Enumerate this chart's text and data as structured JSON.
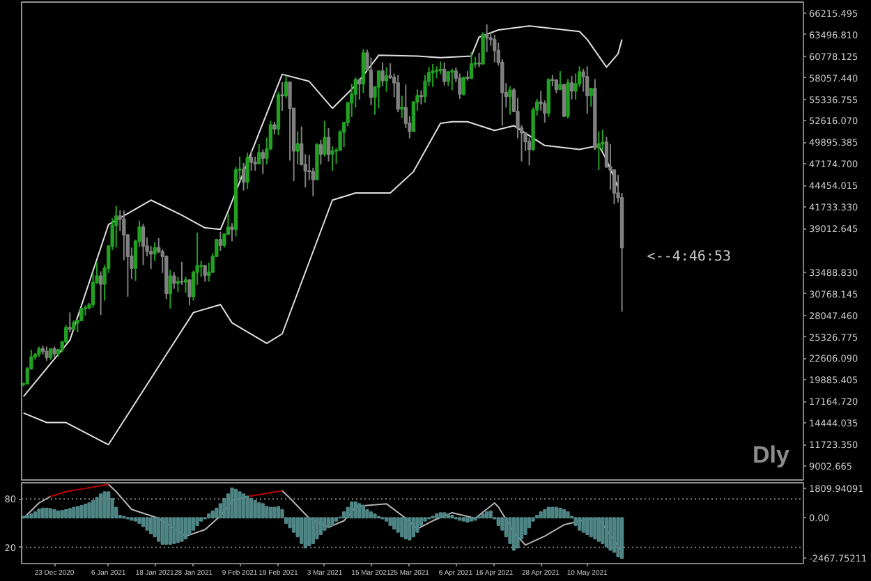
{
  "chart_data": [
    {
      "type": "candlestick",
      "x": [
        "2020-12-15",
        "2020-12-16",
        "2020-12-17",
        "2020-12-18",
        "2020-12-19",
        "2020-12-20",
        "2020-12-21",
        "2020-12-22",
        "2020-12-23",
        "2020-12-24",
        "2020-12-25",
        "2020-12-26",
        "2020-12-27",
        "2020-12-28",
        "2020-12-29",
        "2020-12-30",
        "2020-12-31",
        "2021-01-01",
        "2021-01-02",
        "2021-01-03",
        "2021-01-04",
        "2021-01-05",
        "2021-01-06",
        "2021-01-07",
        "2021-01-08",
        "2021-01-09",
        "2021-01-10",
        "2021-01-11",
        "2021-01-12",
        "2021-01-13",
        "2021-01-14",
        "2021-01-15",
        "2021-01-16",
        "2021-01-17",
        "2021-01-18",
        "2021-01-19",
        "2021-01-20",
        "2021-01-21",
        "2021-01-22",
        "2021-01-23",
        "2021-01-24",
        "2021-01-25",
        "2021-01-26",
        "2021-01-27",
        "2021-01-28",
        "2021-01-29",
        "2021-01-30",
        "2021-01-31",
        "2021-02-01",
        "2021-02-02",
        "2021-02-03",
        "2021-02-04",
        "2021-02-05",
        "2021-02-06",
        "2021-02-07",
        "2021-02-08",
        "2021-02-09",
        "2021-02-10",
        "2021-02-11",
        "2021-02-12",
        "2021-02-13",
        "2021-02-14",
        "2021-02-15",
        "2021-02-16",
        "2021-02-17",
        "2021-02-18",
        "2021-02-19",
        "2021-02-20",
        "2021-02-21",
        "2021-02-22",
        "2021-02-23",
        "2021-02-24",
        "2021-02-25",
        "2021-02-26",
        "2021-02-27",
        "2021-02-28",
        "2021-03-01",
        "2021-03-02",
        "2021-03-03",
        "2021-03-04",
        "2021-03-05",
        "2021-03-06",
        "2021-03-07",
        "2021-03-08",
        "2021-03-09",
        "2021-03-10",
        "2021-03-11",
        "2021-03-12",
        "2021-03-13",
        "2021-03-14",
        "2021-03-15",
        "2021-03-16",
        "2021-03-17",
        "2021-03-18",
        "2021-03-19",
        "2021-03-20",
        "2021-03-21",
        "2021-03-22",
        "2021-03-23",
        "2021-03-24",
        "2021-03-25",
        "2021-03-26",
        "2021-03-27",
        "2021-03-28",
        "2021-03-29",
        "2021-03-30",
        "2021-03-31",
        "2021-04-01",
        "2021-04-02",
        "2021-04-03",
        "2021-04-04",
        "2021-04-05",
        "2021-04-06",
        "2021-04-07",
        "2021-04-08",
        "2021-04-09",
        "2021-04-10",
        "2021-04-11",
        "2021-04-12",
        "2021-04-13",
        "2021-04-14",
        "2021-04-15",
        "2021-04-16",
        "2021-04-17",
        "2021-04-18",
        "2021-04-19",
        "2021-04-20",
        "2021-04-21",
        "2021-04-22",
        "2021-04-23",
        "2021-04-24",
        "2021-04-25",
        "2021-04-26",
        "2021-04-27",
        "2021-04-28",
        "2021-04-29",
        "2021-04-30",
        "2021-05-01",
        "2021-05-02",
        "2021-05-03",
        "2021-05-04",
        "2021-05-05",
        "2021-05-06",
        "2021-05-07",
        "2021-05-08",
        "2021-05-09",
        "2021-05-10",
        "2021-05-11",
        "2021-05-12",
        "2021-05-13",
        "2021-05-14",
        "2021-05-15",
        "2021-05-16",
        "2021-05-17",
        "2021-05-18",
        "2021-05-19"
      ],
      "ohlc": [
        [
          19300,
          19500,
          19050,
          19400
        ],
        [
          19400,
          21500,
          19300,
          21300
        ],
        [
          21300,
          23700,
          21200,
          22800
        ],
        [
          22800,
          23300,
          22400,
          23100
        ],
        [
          23100,
          24100,
          22800,
          23800
        ],
        [
          23800,
          24200,
          23100,
          23500
        ],
        [
          23500,
          24100,
          22300,
          22700
        ],
        [
          22700,
          23800,
          22400,
          23800
        ],
        [
          23800,
          24100,
          22700,
          23200
        ],
        [
          23200,
          23800,
          22800,
          23700
        ],
        [
          23700,
          24800,
          23400,
          24700
        ],
        [
          24700,
          26800,
          24500,
          26500
        ],
        [
          26500,
          28400,
          25900,
          26300
        ],
        [
          26300,
          27400,
          26200,
          27100
        ],
        [
          27100,
          27400,
          25900,
          27400
        ],
        [
          27400,
          29000,
          27300,
          28900
        ],
        [
          28900,
          29300,
          28000,
          29000
        ],
        [
          29000,
          29600,
          28800,
          29400
        ],
        [
          29400,
          33300,
          29000,
          32200
        ],
        [
          32200,
          34800,
          32000,
          33000
        ],
        [
          33000,
          33600,
          28100,
          32000
        ],
        [
          32000,
          34400,
          29900,
          34000
        ],
        [
          34000,
          36900,
          33400,
          36800
        ],
        [
          36800,
          40300,
          36300,
          39400
        ],
        [
          39400,
          41900,
          36600,
          40600
        ],
        [
          40600,
          41300,
          38700,
          40200
        ],
        [
          40200,
          41300,
          35000,
          38200
        ],
        [
          38200,
          38300,
          30400,
          35500
        ],
        [
          35500,
          36600,
          32600,
          34000
        ],
        [
          34000,
          37600,
          32400,
          37400
        ],
        [
          37400,
          40000,
          36700,
          39200
        ],
        [
          39200,
          39600,
          34400,
          36800
        ],
        [
          36800,
          37900,
          35500,
          36100
        ],
        [
          36100,
          36800,
          33900,
          35800
        ],
        [
          35800,
          37300,
          34900,
          36600
        ],
        [
          36600,
          37800,
          35900,
          36100
        ],
        [
          36100,
          36400,
          33400,
          35500
        ],
        [
          35500,
          35600,
          30100,
          30800
        ],
        [
          30800,
          33800,
          28900,
          33000
        ],
        [
          33000,
          33500,
          31400,
          32100
        ],
        [
          32100,
          32900,
          31000,
          32300
        ],
        [
          32300,
          34800,
          31900,
          32250
        ],
        [
          32250,
          32900,
          30900,
          32500
        ],
        [
          32500,
          32600,
          29300,
          30400
        ],
        [
          30400,
          33700,
          29900,
          33500
        ],
        [
          33500,
          38500,
          31900,
          34300
        ],
        [
          34250,
          34900,
          32900,
          34300
        ],
        [
          34300,
          34400,
          32300,
          33100
        ],
        [
          33100,
          34700,
          32300,
          33500
        ],
        [
          33500,
          35900,
          33400,
          35500
        ],
        [
          35500,
          37700,
          35400,
          37600
        ],
        [
          37600,
          38600,
          36200,
          36900
        ],
        [
          36900,
          38300,
          36600,
          38300
        ],
        [
          38300,
          40900,
          38200,
          39200
        ],
        [
          39200,
          39700,
          37400,
          38900
        ],
        [
          38900,
          46800,
          38000,
          46400
        ],
        [
          46400,
          48100,
          45000,
          46500
        ],
        [
          46500,
          47300,
          43800,
          44900
        ],
        [
          44900,
          48600,
          44000,
          48000
        ],
        [
          48000,
          48900,
          46300,
          47400
        ],
        [
          47400,
          48100,
          46300,
          47200
        ],
        [
          47200,
          49700,
          47100,
          48600
        ],
        [
          48600,
          49000,
          45900,
          47900
        ],
        [
          47900,
          50500,
          47100,
          49100
        ],
        [
          49100,
          52600,
          48900,
          52100
        ],
        [
          52100,
          52500,
          50900,
          51600
        ],
        [
          51600,
          56300,
          50800,
          55900
        ],
        [
          55900,
          57500,
          53900,
          55800
        ],
        [
          55800,
          58300,
          55500,
          57500
        ],
        [
          57500,
          57500,
          47600,
          54200
        ],
        [
          54200,
          54200,
          45000,
          48800
        ],
        [
          48800,
          51300,
          47100,
          49700
        ],
        [
          49700,
          51900,
          47000,
          47100
        ],
        [
          47100,
          48400,
          44200,
          46300
        ],
        [
          46300,
          48300,
          45100,
          46200
        ],
        [
          46200,
          46700,
          43100,
          45200
        ],
        [
          45200,
          49800,
          45100,
          49600
        ],
        [
          49600,
          50200,
          47100,
          48400
        ],
        [
          48400,
          52600,
          48100,
          50500
        ],
        [
          50500,
          51700,
          47500,
          48400
        ],
        [
          48400,
          49400,
          46300,
          48800
        ],
        [
          48800,
          49200,
          47200,
          48900
        ],
        [
          48900,
          51400,
          48900,
          51200
        ],
        [
          51200,
          52400,
          49300,
          52400
        ],
        [
          52400,
          54900,
          51900,
          54900
        ],
        [
          54900,
          57300,
          53100,
          56000
        ],
        [
          56000,
          58100,
          54300,
          57800
        ],
        [
          57800,
          58000,
          55300,
          57300
        ],
        [
          57300,
          61700,
          56100,
          61200
        ],
        [
          61200,
          61600,
          58900,
          59000
        ],
        [
          59000,
          60600,
          54600,
          55600
        ],
        [
          55600,
          56900,
          53400,
          56900
        ],
        [
          56900,
          58900,
          54200,
          58900
        ],
        [
          58900,
          60000,
          57000,
          57700
        ],
        [
          57700,
          59400,
          56300,
          58300
        ],
        [
          58300,
          59900,
          57900,
          58100
        ],
        [
          58100,
          58600,
          55600,
          57400
        ],
        [
          57400,
          58400,
          53700,
          54100
        ],
        [
          54100,
          55800,
          53000,
          54300
        ],
        [
          54300,
          57200,
          51700,
          52300
        ],
        [
          52300,
          53200,
          50400,
          51300
        ],
        [
          51300,
          55100,
          51300,
          55000
        ],
        [
          55000,
          56600,
          53900,
          55800
        ],
        [
          55800,
          56500,
          54700,
          55700
        ],
        [
          55700,
          58400,
          54900,
          57600
        ],
        [
          57600,
          59400,
          57000,
          58700
        ],
        [
          58700,
          59800,
          56900,
          58900
        ],
        [
          58900,
          59500,
          58000,
          59000
        ],
        [
          59000,
          60100,
          58500,
          59100
        ],
        [
          59100,
          60000,
          57100,
          57600
        ],
        [
          57600,
          58900,
          57000,
          58800
        ],
        [
          58800,
          59200,
          56500,
          58900
        ],
        [
          58900,
          59400,
          57500,
          58000
        ],
        [
          58000,
          58600,
          55400,
          56000
        ],
        [
          56000,
          58200,
          55800,
          58100
        ],
        [
          58100,
          58900,
          57700,
          58000
        ],
        [
          58000,
          61300,
          57900,
          59800
        ],
        [
          59800,
          60700,
          59300,
          59900
        ],
        [
          59900,
          61200,
          59400,
          59800
        ],
        [
          59800,
          63800,
          59800,
          63500
        ],
        [
          63500,
          64800,
          61300,
          63100
        ],
        [
          63100,
          63800,
          62100,
          62900
        ],
        [
          62900,
          63500,
          60000,
          61500
        ],
        [
          61500,
          62500,
          59600,
          60000
        ],
        [
          60000,
          60400,
          52000,
          56200
        ],
        [
          56200,
          57400,
          54300,
          55700
        ],
        [
          55700,
          57000,
          53400,
          56500
        ],
        [
          56500,
          56800,
          53700,
          53800
        ],
        [
          53800,
          55500,
          50400,
          51700
        ],
        [
          51700,
          52100,
          47500,
          51100
        ],
        [
          51100,
          51200,
          48800,
          50000
        ],
        [
          50000,
          50500,
          47000,
          49000
        ],
        [
          49000,
          54300,
          48800,
          54000
        ],
        [
          54000,
          55400,
          53300,
          55000
        ],
        [
          55000,
          56400,
          53900,
          54800
        ],
        [
          54800,
          55200,
          52400,
          53600
        ],
        [
          53600,
          58000,
          53100,
          57800
        ],
        [
          57800,
          58400,
          57000,
          57750
        ],
        [
          57750,
          57900,
          56100,
          56600
        ],
        [
          56600,
          58900,
          56500,
          57200
        ],
        [
          57200,
          57200,
          53100,
          53200
        ],
        [
          53200,
          57900,
          52900,
          57400
        ],
        [
          57400,
          58300,
          55300,
          56400
        ],
        [
          56400,
          58600,
          55300,
          57300
        ],
        [
          57300,
          59500,
          56900,
          58800
        ],
        [
          58800,
          59200,
          56300,
          58200
        ],
        [
          58200,
          59500,
          53500,
          55800
        ],
        [
          55800,
          56800,
          54400,
          56700
        ],
        [
          56700,
          57900,
          48900,
          49200
        ],
        [
          49200,
          51300,
          46400,
          49700
        ],
        [
          49700,
          51500,
          48800,
          49900
        ],
        [
          49900,
          50600,
          46700,
          46800
        ],
        [
          46800,
          49700,
          43900,
          46400
        ],
        [
          46400,
          46500,
          42100,
          43500
        ],
        [
          43500,
          45800,
          42300,
          42900
        ],
        [
          42900,
          43500,
          28500,
          36600
        ]
      ],
      "colors": [
        "#22a022",
        "#22a022",
        "#22a022",
        "#22a022",
        "#22a022",
        "#808080",
        "#808080",
        "#22a022",
        "#808080",
        "#22a022",
        "#22a022",
        "#22a022",
        "#808080",
        "#22a022",
        "#22a022",
        "#22a022",
        "#22a022",
        "#22a022",
        "#22a022",
        "#22a022",
        "#808080",
        "#22a022",
        "#22a022",
        "#22a022",
        "#22a022",
        "#808080",
        "#808080",
        "#808080",
        "#808080",
        "#22a022",
        "#22a022",
        "#808080",
        "#808080",
        "#808080",
        "#22a022",
        "#808080",
        "#808080",
        "#808080",
        "#22a022",
        "#808080",
        "#22a022",
        "#808080",
        "#22a022",
        "#808080",
        "#22a022",
        "#22a022",
        "#22a022",
        "#808080",
        "#22a022",
        "#22a022",
        "#22a022",
        "#808080",
        "#22a022",
        "#22a022",
        "#808080",
        "#22a022",
        "#22a022",
        "#808080",
        "#22a022",
        "#808080",
        "#808080",
        "#22a022",
        "#808080",
        "#22a022",
        "#22a022",
        "#808080",
        "#22a022",
        "#808080",
        "#22a022",
        "#808080",
        "#808080",
        "#22a022",
        "#808080",
        "#808080",
        "#808080",
        "#808080",
        "#22a022",
        "#808080",
        "#22a022",
        "#808080",
        "#22a022",
        "#22a022",
        "#22a022",
        "#22a022",
        "#22a022",
        "#22a022",
        "#22a022",
        "#808080",
        "#22a022",
        "#808080",
        "#808080",
        "#22a022",
        "#22a022",
        "#808080",
        "#22a022",
        "#808080",
        "#808080",
        "#808080",
        "#22a022",
        "#808080",
        "#808080",
        "#22a022",
        "#22a022",
        "#808080",
        "#22a022",
        "#22a022",
        "#22a022",
        "#22a022",
        "#22a022",
        "#808080",
        "#22a022",
        "#22a022",
        "#808080",
        "#808080",
        "#22a022",
        "#808080",
        "#22a022",
        "#22a022",
        "#808080",
        "#22a022",
        "#808080",
        "#808080",
        "#808080",
        "#808080",
        "#808080",
        "#808080",
        "#22a022",
        "#808080",
        "#808080",
        "#808080",
        "#808080",
        "#808080",
        "#22a022",
        "#22a022",
        "#808080",
        "#808080",
        "#22a022",
        "#808080",
        "#808080",
        "#22a022",
        "#808080",
        "#22a022",
        "#808080",
        "#22a022",
        "#22a022",
        "#808080",
        "#808080",
        "#22a022",
        "#808080",
        "#22a022",
        "#22a022",
        "#808080",
        "#808080",
        "#808080",
        "#808080",
        "#808080"
      ],
      "series": [
        {
          "type": "line",
          "color": "#e0e0e0",
          "x": [
            "2020-12-15",
            "2020-12-27",
            "2021-01-06",
            "2021-01-17",
            "2021-01-25",
            "2021-01-31",
            "2021-02-04",
            "2021-02-06",
            "2021-02-20",
            "2021-02-27",
            "2021-03-05",
            "2021-03-11",
            "2021-03-17",
            "2021-03-27",
            "2021-04-02",
            "2021-04-10",
            "2021-04-12",
            "2021-04-17",
            "2021-04-25",
            "2021-05-08",
            "2021-05-10",
            "2021-05-15",
            "2021-05-18",
            "2021-05-19"
          ],
          "values": [
            17800,
            24900,
            39500,
            42600,
            40700,
            39100,
            38900,
            41200,
            58500,
            57600,
            54200,
            57100,
            60900,
            60800,
            60600,
            60800,
            63200,
            64100,
            64600,
            63900,
            62900,
            59400,
            61100,
            62900
          ]
        },
        {
          "type": "line",
          "color": "#e0e0e0",
          "x": [
            "2020-12-15",
            "2020-12-21",
            "2020-12-26",
            "2021-01-06",
            "2021-01-21",
            "2021-01-28",
            "2021-02-04",
            "2021-02-07",
            "2021-02-16",
            "2021-02-20",
            "2021-03-05",
            "2021-03-11",
            "2021-03-20",
            "2021-03-26",
            "2021-04-02",
            "2021-04-05",
            "2021-04-09",
            "2021-04-16",
            "2021-04-21",
            "2021-04-29",
            "2021-05-08",
            "2021-05-13",
            "2021-05-15",
            "2021-05-18"
          ],
          "values": [
            15700,
            14500,
            14500,
            11700,
            23100,
            28400,
            29400,
            27100,
            24500,
            25700,
            42600,
            43500,
            43500,
            46200,
            52300,
            52500,
            52500,
            51400,
            52000,
            49500,
            49000,
            49500,
            47700,
            44200
          ]
        }
      ],
      "xlim": [
        "2020-12-14T12:00",
        "2021-07-05"
      ],
      "ylim": [
        7240,
        67620
      ],
      "yticks": [
        66215.495,
        {
          "value": 63496.81,
          "label": "63496.810"
        },
        60778.125,
        {
          "value": 58057.44,
          "label": "58057.440"
        },
        55336.755,
        {
          "value": 52616.07,
          "label": "52616.070"
        },
        49895.385,
        {
          "value": 47174.7,
          "label": "47174.700"
        },
        44454.015,
        {
          "value": 41733.33,
          "label": "41733.330"
        },
        39012.645,
        {
          "value": 33488.83,
          "label": "33488.830"
        },
        30768.145,
        {
          "value": 28047.46,
          "label": "28047.460"
        },
        25326.775,
        {
          "value": 22606.09,
          "label": "22606.090"
        },
        19885.405,
        {
          "value": 17164.72,
          "label": "17164.720"
        },
        14444.035,
        {
          "value": 11723.35,
          "label": "11723.350"
        },
        9002.665
      ],
      "tick_labels": "y",
      "annotations": [
        "<--4:46:53",
        "Dly"
      ]
    },
    {
      "type": "bar",
      "x": [
        "2020-12-15",
        "2020-12-16",
        "2020-12-17",
        "2020-12-18",
        "2020-12-19",
        "2020-12-20",
        "2020-12-21",
        "2020-12-22",
        "2020-12-23",
        "2020-12-24",
        "2020-12-25",
        "2020-12-26",
        "2020-12-27",
        "2020-12-28",
        "2020-12-29",
        "2020-12-30",
        "2020-12-31",
        "2021-01-01",
        "2021-01-02",
        "2021-01-03",
        "2021-01-04",
        "2021-01-05",
        "2021-01-06",
        "2021-01-07",
        "2021-01-08",
        "2021-01-09",
        "2021-01-10",
        "2021-01-11",
        "2021-01-12",
        "2021-01-13",
        "2021-01-14",
        "2021-01-15",
        "2021-01-16",
        "2021-01-17",
        "2021-01-18",
        "2021-01-19",
        "2021-01-20",
        "2021-01-21",
        "2021-01-22",
        "2021-01-23",
        "2021-01-24",
        "2021-01-25",
        "2021-01-26",
        "2021-01-27",
        "2021-01-28",
        "2021-01-29",
        "2021-01-30",
        "2021-01-31",
        "2021-02-01",
        "2021-02-02",
        "2021-02-03",
        "2021-02-04",
        "2021-02-05",
        "2021-02-06",
        "2021-02-07",
        "2021-02-08",
        "2021-02-09",
        "2021-02-10",
        "2021-02-11",
        "2021-02-12",
        "2021-02-13",
        "2021-02-14",
        "2021-02-15",
        "2021-02-16",
        "2021-02-17",
        "2021-02-18",
        "2021-02-19",
        "2021-02-20",
        "2021-02-21",
        "2021-02-22",
        "2021-02-23",
        "2021-02-24",
        "2021-02-25",
        "2021-02-26",
        "2021-02-27",
        "2021-02-28",
        "2021-03-01",
        "2021-03-02",
        "2021-03-03",
        "2021-03-04",
        "2021-03-05",
        "2021-03-06",
        "2021-03-07",
        "2021-03-08",
        "2021-03-09",
        "2021-03-10",
        "2021-03-11",
        "2021-03-12",
        "2021-03-13",
        "2021-03-14",
        "2021-03-15",
        "2021-03-16",
        "2021-03-17",
        "2021-03-18",
        "2021-03-19",
        "2021-03-20",
        "2021-03-21",
        "2021-03-22",
        "2021-03-23",
        "2021-03-24",
        "2021-03-25",
        "2021-03-26",
        "2021-03-27",
        "2021-03-28",
        "2021-03-29",
        "2021-03-30",
        "2021-03-31",
        "2021-04-01",
        "2021-04-02",
        "2021-04-03",
        "2021-04-04",
        "2021-04-05",
        "2021-04-06",
        "2021-04-07",
        "2021-04-08",
        "2021-04-09",
        "2021-04-10",
        "2021-04-11",
        "2021-04-12",
        "2021-04-13",
        "2021-04-14",
        "2021-04-15",
        "2021-04-16",
        "2021-04-17",
        "2021-04-18",
        "2021-04-19",
        "2021-04-20",
        "2021-04-21",
        "2021-04-22",
        "2021-04-23",
        "2021-04-24",
        "2021-04-25",
        "2021-04-26",
        "2021-04-27",
        "2021-04-28",
        "2021-04-29",
        "2021-04-30",
        "2021-05-01",
        "2021-05-02",
        "2021-05-03",
        "2021-05-04",
        "2021-05-05",
        "2021-05-06",
        "2021-05-07",
        "2021-05-08",
        "2021-05-09",
        "2021-05-10",
        "2021-05-11",
        "2021-05-12",
        "2021-05-13",
        "2021-05-14",
        "2021-05-15",
        "2021-05-16",
        "2021-05-17",
        "2021-05-18",
        "2021-05-19"
      ],
      "values": [
        80,
        140,
        220,
        350,
        520,
        570,
        570,
        550,
        490,
        410,
        440,
        490,
        550,
        630,
        680,
        740,
        820,
        900,
        1040,
        1230,
        1450,
        1580,
        1580,
        1170,
        630,
        140,
        80,
        -50,
        -140,
        -190,
        -330,
        -520,
        -740,
        -960,
        -1150,
        -1420,
        -1610,
        -1610,
        -1610,
        -1560,
        -1500,
        -1420,
        -1280,
        -1010,
        -740,
        -460,
        -190,
        -55,
        220,
        410,
        570,
        850,
        1170,
        1450,
        1809.94091,
        1720,
        1580,
        1450,
        1310,
        1170,
        1040,
        900,
        850,
        680,
        630,
        630,
        680,
        490,
        -330,
        -600,
        -870,
        -1150,
        -1560,
        -1830,
        -1690,
        -1560,
        -1280,
        -1010,
        -740,
        -600,
        -460,
        -190,
        30,
        350,
        630,
        960,
        960,
        850,
        760,
        490,
        350,
        220,
        80,
        -55,
        -190,
        -460,
        -680,
        -870,
        -1150,
        -1280,
        -1340,
        -1150,
        -870,
        -460,
        -190,
        -55,
        80,
        220,
        300,
        300,
        220,
        140,
        -55,
        -140,
        -190,
        -250,
        -190,
        -140,
        80,
        220,
        350,
        410,
        -55,
        -460,
        -740,
        -1150,
        -1560,
        -1970,
        -1830,
        -1280,
        -1010,
        -600,
        -190,
        140,
        350,
        490,
        630,
        630,
        630,
        570,
        490,
        350,
        80,
        -460,
        -740,
        -870,
        -1010,
        -1150,
        -1280,
        -1420,
        -1560,
        -1770,
        -1970,
        -2100,
        -2370,
        -2467.75211
      ],
      "color": "#4f8585",
      "series": [
        {
          "type": "line",
          "axis": "y2",
          "color": "#b4b4b4",
          "x": [
            "2020-12-15",
            "2020-12-19",
            "2020-12-22",
            "2020-12-30",
            "2021-01-06",
            "2021-01-08",
            "2021-01-12",
            "2021-01-19",
            "2021-01-26",
            "2021-01-31",
            "2021-02-04",
            "2021-02-07",
            "2021-02-11",
            "2021-02-15",
            "2021-02-20",
            "2021-02-22",
            "2021-02-27",
            "2021-03-04",
            "2021-03-08",
            "2021-03-11",
            "2021-03-14",
            "2021-03-19",
            "2021-03-24",
            "2021-03-27",
            "2021-03-31",
            "2021-04-05",
            "2021-04-11",
            "2021-04-16",
            "2021-04-17",
            "2021-04-21",
            "2021-04-24",
            "2021-04-29",
            "2021-05-04",
            "2021-05-10",
            "2021-05-13",
            "2021-05-15",
            "2021-05-19"
          ],
          "values": [
            56,
            75,
            83,
            null,
            98,
            89,
            67,
            56,
            34,
            42,
            59,
            78,
            83,
            null,
            90,
            81,
            56,
            45,
            53,
            70,
            72,
            74,
            56,
            43,
            53,
            63,
            56,
            75,
            70,
            39,
            23,
            34,
            48,
            55,
            55,
            42,
            15
          ]
        },
        {
          "type": "line",
          "axis": "y2",
          "color": "#c00000",
          "x": [
            "2020-12-22",
            "2020-12-26",
            "2020-12-31",
            "2021-01-06",
            "2021-01-20",
            "2021-02-11",
            "2021-02-20"
          ],
          "values": [
            83,
            89,
            93,
            98,
            null,
            83,
            90
          ]
        }
      ],
      "xlim": [
        "2020-12-14T12:00",
        "2021-07-05"
      ],
      "xticks": [
        {
          "value": "2020-12-23",
          "label": "23 Dec 2020"
        },
        {
          "value": "2021-01-06",
          "label": "6 Jan 2021"
        },
        {
          "value": "2021-01-18",
          "label": "18 Jan 2021"
        },
        {
          "value": "2021-01-28",
          "label": "28 Jan 2021"
        },
        {
          "value": "2021-02-09",
          "label": "9 Feb 2021"
        },
        {
          "value": "2021-02-19",
          "label": "19 Feb 2021"
        },
        {
          "value": "2021-03-03",
          "label": "3 Mar 2021"
        },
        {
          "value": "2021-03-15",
          "label": "15 Mar 2021"
        },
        {
          "value": "2021-03-25",
          "label": "25 Mar 2021"
        },
        {
          "value": "2021-04-06",
          "label": "6 Apr 2021"
        },
        {
          "value": "2021-04-16",
          "label": "16 Apr 2021"
        },
        {
          "value": "2021-04-28",
          "label": "28 Apr 2021"
        },
        {
          "value": "2021-05-10",
          "label": "10 May 2021"
        }
      ],
      "ylim": [
        -2797,
        2139
      ],
      "yticks": [
        1809.94091,
        {
          "value": 0,
          "label": "0.00"
        },
        -2467.75211
      ],
      "y2lim": [
        0,
        100
      ],
      "y2ticks": [
        80,
        20
      ],
      "ref_lines": [
        {
          "axis": "y2",
          "value": 80,
          "line_style": "dotted",
          "color": "#808080"
        },
        {
          "axis": "y2",
          "value": 20,
          "line_style": "dotted",
          "color": "#808080"
        }
      ]
    }
  ]
}
